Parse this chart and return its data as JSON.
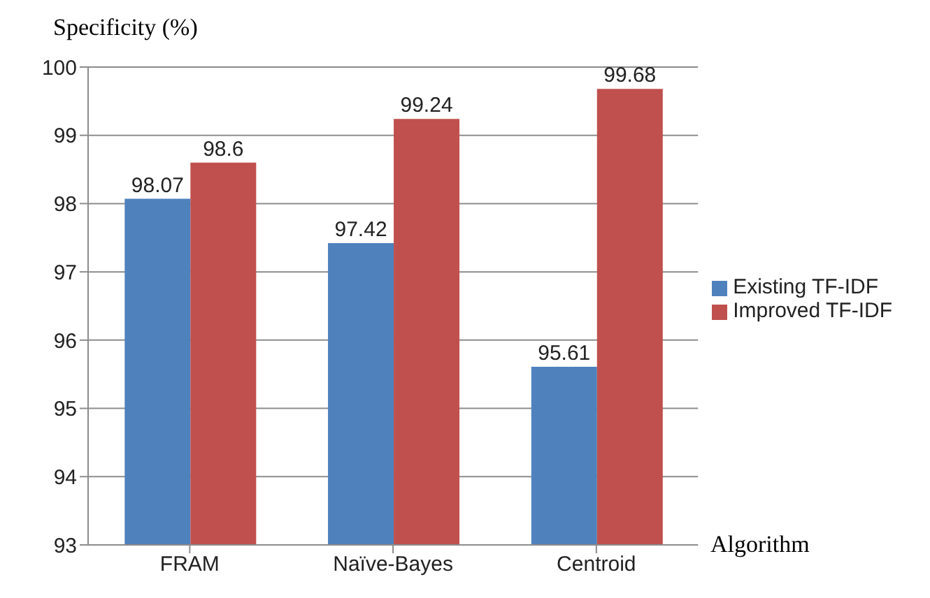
{
  "chart_data": {
    "type": "bar",
    "title": "Specificity (%)",
    "xlabel": "Algorithm",
    "categories": [
      "FRAM",
      "Naïve-Bayes",
      "Centroid"
    ],
    "series": [
      {
        "name": "Existing TF-IDF",
        "color": "#4f81bd",
        "values": [
          98.07,
          97.42,
          95.61
        ]
      },
      {
        "name": "Improved TF-IDF",
        "color": "#c0504d",
        "values": [
          98.6,
          99.24,
          99.68
        ]
      }
    ],
    "ylim": [
      93,
      100
    ],
    "yticks": [
      93,
      94,
      95,
      96,
      97,
      98,
      99,
      100
    ],
    "grid": "y",
    "legend": "right",
    "data_labels": true
  }
}
